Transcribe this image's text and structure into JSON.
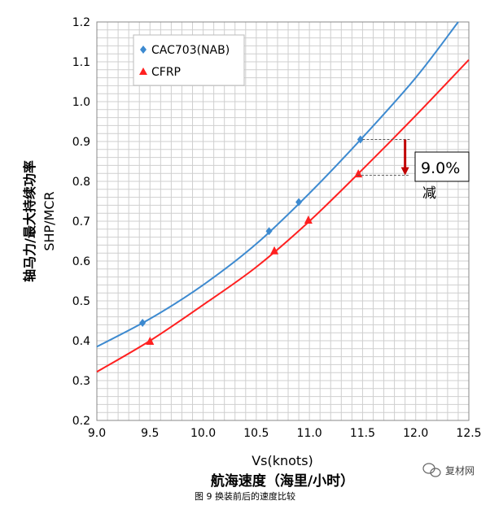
{
  "chart_data": {
    "type": "line",
    "xlabel": "Vs(knots)",
    "xlabel_cn": "航海速度（海里/小时）",
    "ylabel": "SHP/MCR",
    "ylabel_cn": "轴马力/最大持续功率",
    "xlim": [
      9.0,
      12.5
    ],
    "ylim": [
      0.2,
      1.2
    ],
    "xticks": [
      "9.0",
      "9.5",
      "10.0",
      "10.5",
      "11.0",
      "11.5",
      "12.0",
      "12.5"
    ],
    "yticks": [
      "0.2",
      "0.3",
      "0.4",
      "0.5",
      "0.6",
      "0.7",
      "0.8",
      "0.9",
      "1.0",
      "1.1",
      "1.2"
    ],
    "grid": true,
    "legend_position": "top-left",
    "series": [
      {
        "name": "CAC703(NAB)",
        "color": "#3d8ad0",
        "marker": "diamond",
        "points": [
          [
            9.43,
            0.445
          ],
          [
            10.62,
            0.675
          ],
          [
            10.9,
            0.748
          ],
          [
            11.48,
            0.905
          ]
        ],
        "curve": [
          [
            9.0,
            0.385
          ],
          [
            9.5,
            0.455
          ],
          [
            10.0,
            0.54
          ],
          [
            10.5,
            0.643
          ],
          [
            11.0,
            0.77
          ],
          [
            11.5,
            0.91
          ],
          [
            12.0,
            1.06
          ],
          [
            12.4,
            1.2
          ]
        ]
      },
      {
        "name": "CFRP",
        "color": "#ff2020",
        "marker": "triangle",
        "points": [
          [
            9.5,
            0.398
          ],
          [
            10.67,
            0.625
          ],
          [
            10.99,
            0.702
          ],
          [
            11.46,
            0.818
          ]
        ],
        "curve": [
          [
            9.0,
            0.322
          ],
          [
            9.5,
            0.4
          ],
          [
            10.0,
            0.49
          ],
          [
            10.5,
            0.585
          ],
          [
            11.0,
            0.7
          ],
          [
            11.5,
            0.83
          ],
          [
            12.0,
            0.965
          ],
          [
            12.5,
            1.105
          ]
        ]
      }
    ],
    "annotation": {
      "text": "9.0%",
      "text_cn": "减",
      "x": 11.9,
      "y_top": 0.905,
      "y_bottom": 0.815
    },
    "caption": "图 9 换装前后的速度比较"
  },
  "watermark": {
    "text": "复材网",
    "icon": "wechat-icon"
  }
}
